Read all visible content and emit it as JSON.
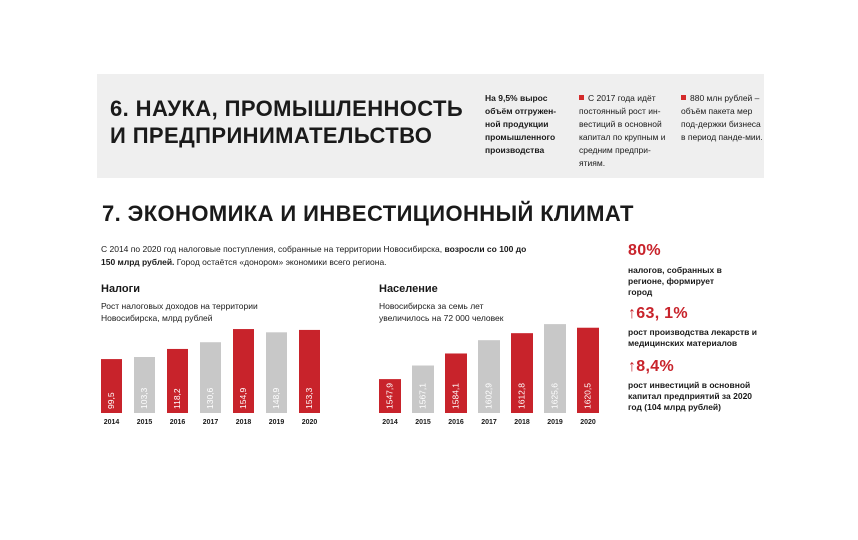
{
  "band": {
    "title": "6. НАУКА, ПРОМЫШЛЕННОСТЬ И ПРЕДПРИНИМАТЕЛЬСТВО",
    "lead": "На 9,5% вырос объём отгружен-ной продукции промышленного производства",
    "col2": "С 2017 года идёт постоянный рост ин-вестиций в основной капитал по крупным и средним предпри-ятиям.",
    "col3": "880 млн рублей – объём пакета мер под-держки бизнеса в период панде-мии."
  },
  "section": {
    "title": "7. ЭКОНОМИКА И ИНВЕСТИЦИОННЫЙ КЛИМАТ",
    "intro_a": "С 2014 по 2020 год налоговые поступления, собранные на территории Новосибирска, ",
    "intro_b": "возросли со 100 до 150 млрд рублей.",
    "intro_c": " Город остаётся «донором» экономики всего региона."
  },
  "chart_data": [
    {
      "type": "bar",
      "title": "Налоги",
      "subtitle": "Рост налоговых доходов на территории Новосибирска, млрд рублей",
      "categories": [
        "2014",
        "2015",
        "2016",
        "2017",
        "2018",
        "2019",
        "2020"
      ],
      "values": [
        99.5,
        103.3,
        118.2,
        130.6,
        154.9,
        148.9,
        153.3
      ],
      "value_labels": [
        "99,5",
        "103,3",
        "118,2",
        "130,6",
        "154,9",
        "148,9",
        "153,3"
      ],
      "bar_colors": [
        "#c8232b",
        "#c8c8c8",
        "#c8232b",
        "#c8c8c8",
        "#c8232b",
        "#c8c8c8",
        "#c8232b"
      ]
    },
    {
      "type": "bar",
      "title": "Население",
      "subtitle": "Новосибирска за семь лет увеличилось на 72 000 человек",
      "categories": [
        "2014",
        "2015",
        "2016",
        "2017",
        "2018",
        "2019",
        "2020"
      ],
      "values": [
        1547.9,
        1567.1,
        1584.1,
        1602.9,
        1612.8,
        1625.6,
        1620.5
      ],
      "value_labels": [
        "1547,9",
        "1567,1",
        "1584,1",
        "1602,9",
        "1612,8",
        "1625,6",
        "1620,5"
      ],
      "bar_colors": [
        "#c8232b",
        "#c8c8c8",
        "#c8232b",
        "#c8c8c8",
        "#c8232b",
        "#c8c8c8",
        "#c8232b"
      ]
    }
  ],
  "stats": [
    {
      "value": "80%",
      "text": "налогов, собранных в регионе, формирует город"
    },
    {
      "value": "↑63, 1%",
      "text": "рост производства лекарств и медицинских материалов"
    },
    {
      "value": "↑8,4%",
      "text": "рост инвестиций в основной капитал предприятий за 2020 год (104 млрд рублей)"
    }
  ],
  "colors": {
    "accent": "#c8232b",
    "gray_bar": "#c8c8c8",
    "band_bg": "#efefef"
  }
}
